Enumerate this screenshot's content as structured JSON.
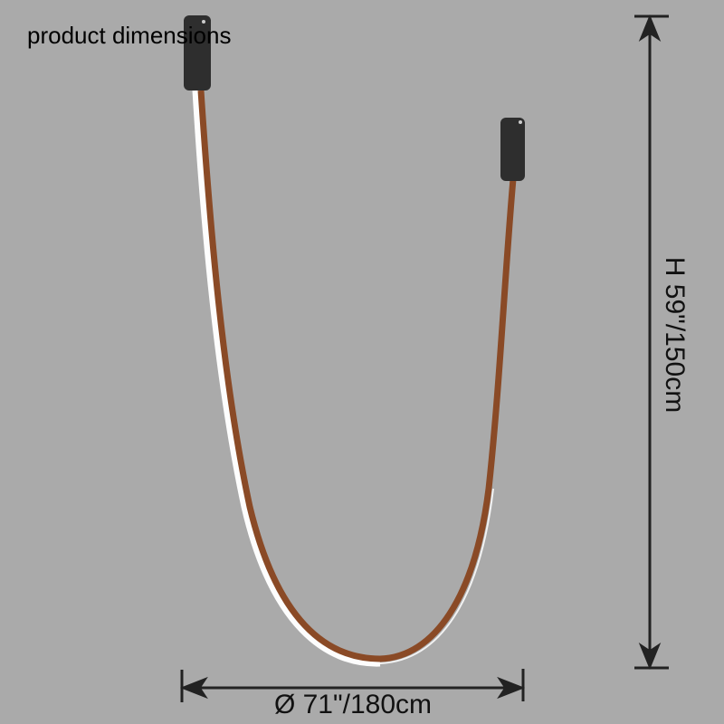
{
  "title": "product dimensions",
  "dimensions": {
    "width_label": "Ø 71\"/180cm",
    "height_label": "H 59\"/150cm"
  },
  "colors": {
    "background": "#aaaaaa",
    "strip": "#8a4a26",
    "light": "#ffffff",
    "canister": "#2e2e2e",
    "dimension_line": "#222222"
  }
}
